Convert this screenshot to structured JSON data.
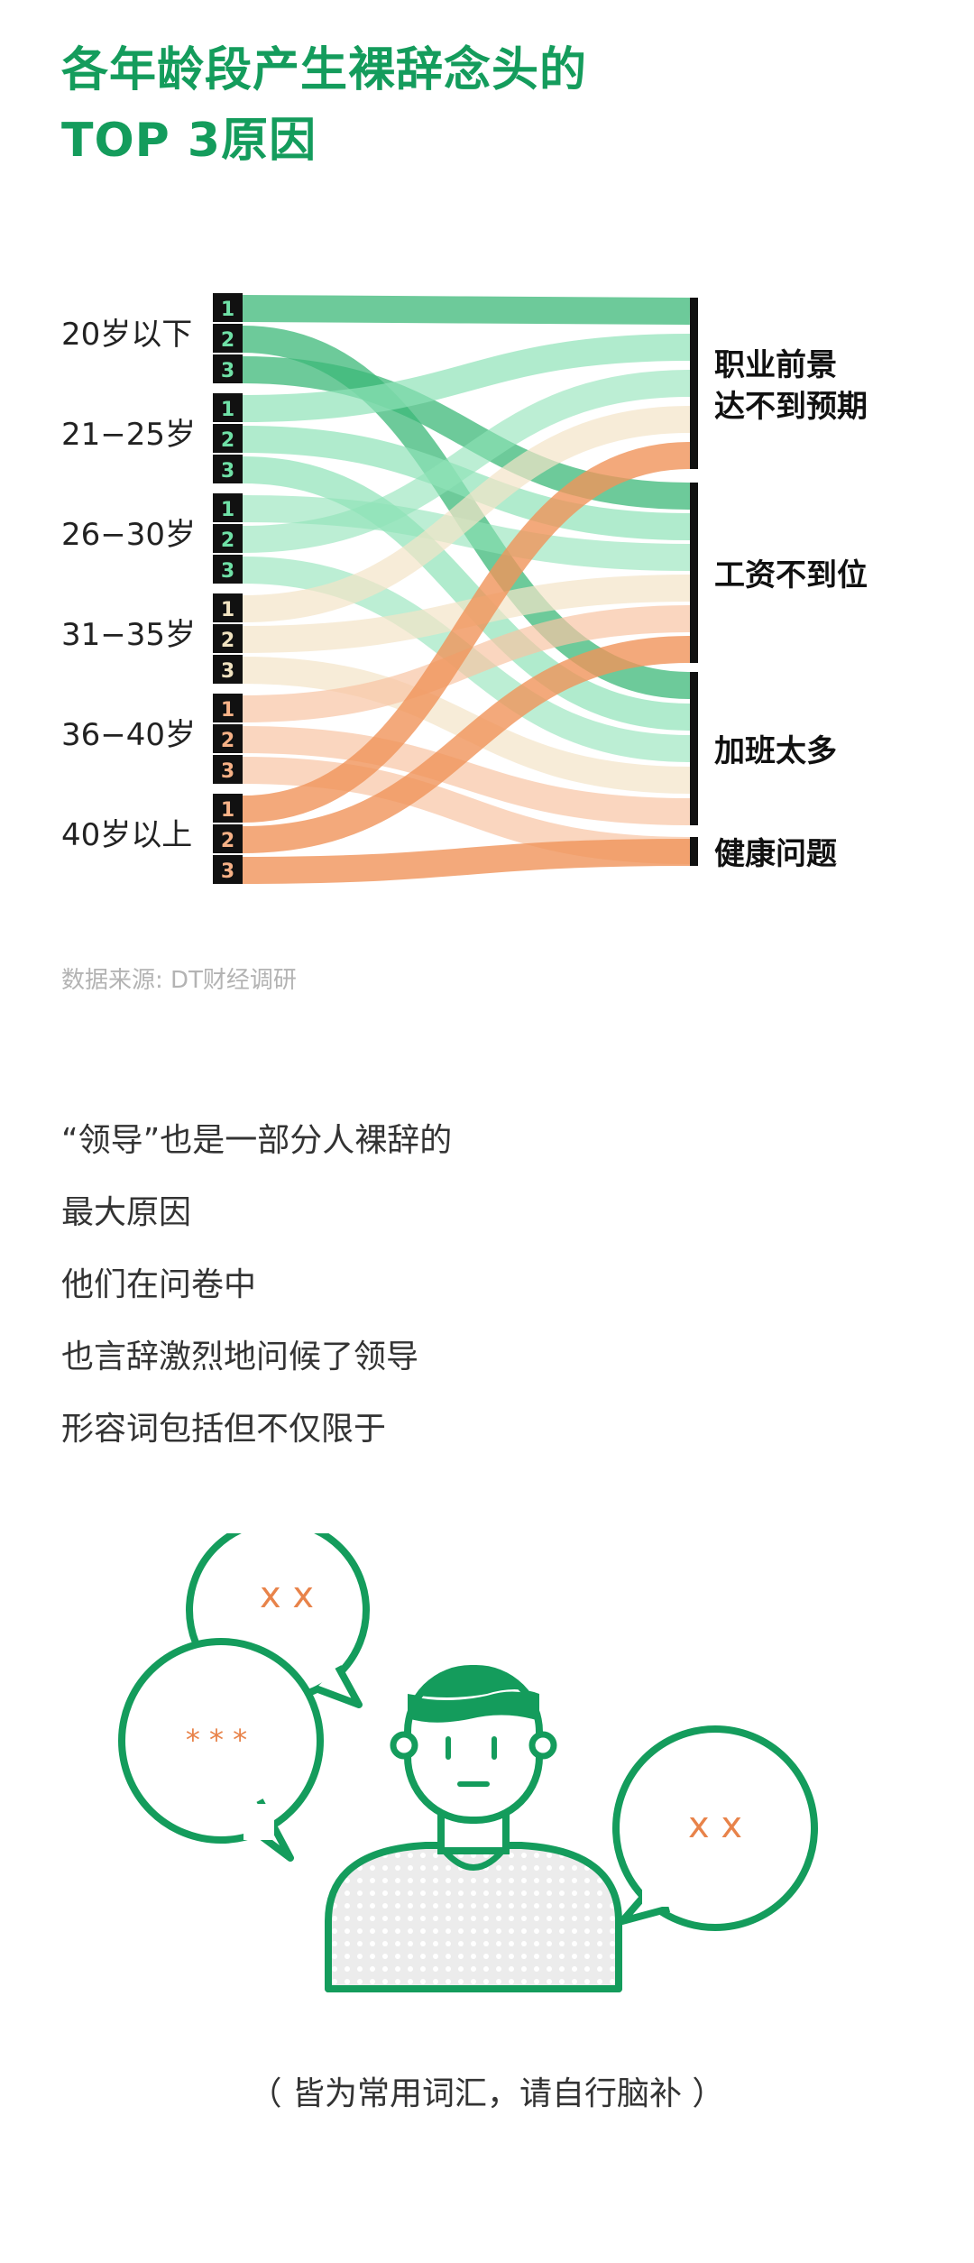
{
  "title": {
    "line1": "各年龄段产生裸辞念头的",
    "line2": "TOP 3原因"
  },
  "colors": {
    "brand_green": "#149c5c",
    "flow_green": "#3cb878",
    "flow_light_green": "#8fe3b8",
    "flow_cream": "#f4e4c8",
    "flow_orange": "#f0935a",
    "flow_light_orange": "#f8c4a4",
    "orange_text": "#e8834a"
  },
  "chart_data": {
    "type": "sankey",
    "rank_labels": [
      "1",
      "2",
      "3"
    ],
    "age_groups": [
      "20岁以下",
      "21−25岁",
      "26−30岁",
      "31−35岁",
      "36−40岁",
      "40岁以上"
    ],
    "reasons": [
      "职业前景\n达不到预期",
      "工资不到位",
      "加班太多",
      "健康问题"
    ],
    "reason_lines": [
      [
        "职业前景",
        "达不到预期"
      ],
      [
        "工资不到位"
      ],
      [
        "加班太多"
      ],
      [
        "健康问题"
      ]
    ],
    "links": [
      {
        "age": "20岁以下",
        "rank": 1,
        "reason": "职业前景\n达不到预期"
      },
      {
        "age": "20岁以下",
        "rank": 2,
        "reason": "加班太多"
      },
      {
        "age": "20岁以下",
        "rank": 3,
        "reason": "工资不到位"
      },
      {
        "age": "21−25岁",
        "rank": 1,
        "reason": "职业前景\n达不到预期"
      },
      {
        "age": "21−25岁",
        "rank": 2,
        "reason": "工资不到位"
      },
      {
        "age": "21−25岁",
        "rank": 3,
        "reason": "加班太多"
      },
      {
        "age": "26−30岁",
        "rank": 1,
        "reason": "工资不到位"
      },
      {
        "age": "26−30岁",
        "rank": 2,
        "reason": "职业前景\n达不到预期"
      },
      {
        "age": "26−30岁",
        "rank": 3,
        "reason": "加班太多"
      },
      {
        "age": "31−35岁",
        "rank": 1,
        "reason": "职业前景\n达不到预期"
      },
      {
        "age": "31−35岁",
        "rank": 2,
        "reason": "工资不到位"
      },
      {
        "age": "31−35岁",
        "rank": 3,
        "reason": "加班太多"
      },
      {
        "age": "36−40岁",
        "rank": 1,
        "reason": "工资不到位"
      },
      {
        "age": "36−40岁",
        "rank": 2,
        "reason": "加班太多"
      },
      {
        "age": "36−40岁",
        "rank": 3,
        "reason": "健康问题"
      },
      {
        "age": "40岁以上",
        "rank": 1,
        "reason": "职业前景\n达不到预期"
      },
      {
        "age": "40岁以上",
        "rank": 2,
        "reason": "工资不到位"
      },
      {
        "age": "40岁以上",
        "rank": 3,
        "reason": "健康问题"
      }
    ]
  },
  "source": "数据来源: DT财经调研",
  "paragraph": [
    "“领导”也是一部分人裸辞的",
    "最大原因",
    "他们在问卷中",
    "也言辞激烈地问候了领导",
    "形容词包括但不仅限于"
  ],
  "bubbles": {
    "back_left": "x x",
    "front_left": "* * *",
    "right": "x x"
  },
  "caption": "（ 皆为常用词汇，请自行脑补 ）"
}
